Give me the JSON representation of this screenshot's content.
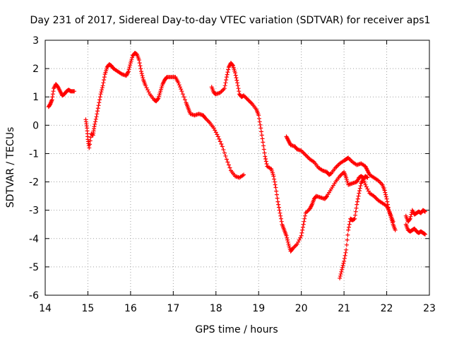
{
  "chart_data": {
    "type": "scatter",
    "title": "Day 231 of 2017, Sidereal Day-to-day VTEC variation (SDTVAR) for receiver aps1",
    "xlabel": "GPS time / hours",
    "ylabel": "SDTVAR / TECUs",
    "xlim": [
      14,
      23
    ],
    "ylim": [
      -6,
      3
    ],
    "xticks": [
      "14",
      "15",
      "16",
      "17",
      "18",
      "19",
      "20",
      "21",
      "22",
      "23"
    ],
    "yticks": [
      "-6",
      "-5",
      "-4",
      "-3",
      "-2",
      "-1",
      "0",
      "1",
      "2",
      "3"
    ],
    "grid": true,
    "marker": "+",
    "color": "#ff0000",
    "series": [
      {
        "name": "track-1",
        "points": [
          [
            14.08,
            0.65
          ],
          [
            14.12,
            0.75
          ],
          [
            14.16,
            0.9
          ],
          [
            14.2,
            1.3
          ],
          [
            14.25,
            1.45
          ],
          [
            14.3,
            1.35
          ],
          [
            14.35,
            1.2
          ],
          [
            14.4,
            1.05
          ],
          [
            14.45,
            1.1
          ],
          [
            14.5,
            1.2
          ],
          [
            14.55,
            1.25
          ],
          [
            14.6,
            1.2
          ],
          [
            14.68,
            1.2
          ]
        ]
      },
      {
        "name": "track-2",
        "points": [
          [
            14.95,
            0.2
          ],
          [
            14.98,
            -0.1
          ],
          [
            15.0,
            -0.5
          ],
          [
            15.03,
            -0.8
          ],
          [
            15.08,
            -0.3
          ],
          [
            15.12,
            -0.35
          ],
          [
            15.15,
            -0.05
          ],
          [
            15.2,
            0.3
          ],
          [
            15.25,
            0.7
          ],
          [
            15.3,
            1.1
          ],
          [
            15.35,
            1.4
          ],
          [
            15.4,
            1.8
          ],
          [
            15.45,
            2.05
          ],
          [
            15.5,
            2.15
          ],
          [
            15.55,
            2.1
          ],
          [
            15.6,
            2.0
          ],
          [
            15.7,
            1.9
          ],
          [
            15.8,
            1.8
          ],
          [
            15.9,
            1.75
          ],
          [
            15.95,
            1.9
          ],
          [
            16.0,
            2.2
          ],
          [
            16.05,
            2.45
          ],
          [
            16.1,
            2.55
          ],
          [
            16.15,
            2.5
          ],
          [
            16.2,
            2.3
          ],
          [
            16.25,
            1.9
          ],
          [
            16.3,
            1.6
          ],
          [
            16.35,
            1.4
          ],
          [
            16.45,
            1.1
          ],
          [
            16.55,
            0.9
          ],
          [
            16.6,
            0.85
          ],
          [
            16.65,
            0.95
          ],
          [
            16.7,
            1.2
          ],
          [
            16.75,
            1.45
          ],
          [
            16.8,
            1.6
          ],
          [
            16.85,
            1.7
          ],
          [
            16.95,
            1.7
          ],
          [
            17.05,
            1.7
          ],
          [
            17.12,
            1.5
          ],
          [
            17.2,
            1.2
          ],
          [
            17.3,
            0.8
          ],
          [
            17.35,
            0.6
          ],
          [
            17.4,
            0.4
          ],
          [
            17.5,
            0.35
          ],
          [
            17.6,
            0.4
          ],
          [
            17.7,
            0.35
          ],
          [
            17.75,
            0.25
          ],
          [
            17.85,
            0.1
          ],
          [
            17.95,
            -0.1
          ],
          [
            18.05,
            -0.4
          ],
          [
            18.15,
            -0.75
          ],
          [
            18.25,
            -1.2
          ],
          [
            18.35,
            -1.6
          ],
          [
            18.45,
            -1.8
          ],
          [
            18.55,
            -1.85
          ],
          [
            18.65,
            -1.75
          ]
        ]
      },
      {
        "name": "track-3",
        "points": [
          [
            17.9,
            1.35
          ],
          [
            17.95,
            1.15
          ],
          [
            18.0,
            1.1
          ],
          [
            18.1,
            1.15
          ],
          [
            18.2,
            1.3
          ],
          [
            18.25,
            1.7
          ],
          [
            18.3,
            2.05
          ],
          [
            18.35,
            2.2
          ],
          [
            18.4,
            2.1
          ],
          [
            18.45,
            1.85
          ],
          [
            18.5,
            1.5
          ],
          [
            18.55,
            1.1
          ],
          [
            18.6,
            1.0
          ],
          [
            18.65,
            1.05
          ],
          [
            18.75,
            0.9
          ],
          [
            18.85,
            0.75
          ],
          [
            18.95,
            0.55
          ],
          [
            19.0,
            0.35
          ],
          [
            19.05,
            -0.1
          ],
          [
            19.1,
            -0.6
          ],
          [
            19.15,
            -1.1
          ],
          [
            19.2,
            -1.45
          ],
          [
            19.3,
            -1.55
          ],
          [
            19.35,
            -1.8
          ],
          [
            19.4,
            -2.2
          ],
          [
            19.45,
            -2.7
          ],
          [
            19.5,
            -3.1
          ],
          [
            19.55,
            -3.5
          ],
          [
            19.6,
            -3.7
          ],
          [
            19.65,
            -3.9
          ],
          [
            19.7,
            -4.2
          ],
          [
            19.75,
            -4.45
          ],
          [
            19.8,
            -4.35
          ],
          [
            19.9,
            -4.2
          ],
          [
            20.0,
            -3.9
          ],
          [
            20.05,
            -3.5
          ],
          [
            20.1,
            -3.1
          ],
          [
            20.2,
            -2.95
          ],
          [
            20.25,
            -2.8
          ],
          [
            20.3,
            -2.6
          ],
          [
            20.35,
            -2.5
          ],
          [
            20.45,
            -2.55
          ],
          [
            20.55,
            -2.6
          ],
          [
            20.6,
            -2.5
          ],
          [
            20.7,
            -2.25
          ],
          [
            20.8,
            -2.0
          ],
          [
            20.9,
            -1.8
          ],
          [
            21.0,
            -1.65
          ],
          [
            21.05,
            -1.85
          ],
          [
            21.1,
            -2.1
          ],
          [
            21.2,
            -2.05
          ],
          [
            21.3,
            -2.0
          ],
          [
            21.35,
            -1.85
          ],
          [
            21.4,
            -1.8
          ],
          [
            21.45,
            -1.85
          ],
          [
            21.5,
            -2.1
          ],
          [
            21.6,
            -2.4
          ],
          [
            21.7,
            -2.5
          ],
          [
            21.8,
            -2.65
          ],
          [
            21.9,
            -2.75
          ],
          [
            22.0,
            -2.85
          ],
          [
            22.05,
            -3.0
          ],
          [
            22.1,
            -3.25
          ],
          [
            22.15,
            -3.5
          ],
          [
            22.2,
            -3.7
          ]
        ]
      },
      {
        "name": "track-4",
        "points": [
          [
            19.65,
            -0.4
          ],
          [
            19.7,
            -0.55
          ],
          [
            19.75,
            -0.7
          ],
          [
            19.85,
            -0.75
          ],
          [
            19.9,
            -0.85
          ],
          [
            20.0,
            -0.9
          ],
          [
            20.1,
            -1.05
          ],
          [
            20.2,
            -1.2
          ],
          [
            20.3,
            -1.3
          ],
          [
            20.4,
            -1.5
          ],
          [
            20.5,
            -1.6
          ],
          [
            20.6,
            -1.65
          ],
          [
            20.65,
            -1.75
          ],
          [
            20.7,
            -1.7
          ],
          [
            20.8,
            -1.5
          ],
          [
            20.9,
            -1.35
          ],
          [
            21.0,
            -1.25
          ],
          [
            21.05,
            -1.2
          ],
          [
            21.1,
            -1.15
          ],
          [
            21.2,
            -1.3
          ],
          [
            21.3,
            -1.4
          ],
          [
            21.4,
            -1.35
          ],
          [
            21.5,
            -1.45
          ],
          [
            21.55,
            -1.6
          ],
          [
            21.6,
            -1.75
          ],
          [
            21.7,
            -1.85
          ],
          [
            21.8,
            -1.95
          ],
          [
            21.9,
            -2.1
          ],
          [
            21.95,
            -2.3
          ],
          [
            22.0,
            -2.6
          ],
          [
            22.05,
            -3.0
          ],
          [
            22.1,
            -3.2
          ],
          [
            22.15,
            -3.4
          ]
        ]
      },
      {
        "name": "track-5",
        "points": [
          [
            20.9,
            -5.4
          ],
          [
            20.95,
            -5.1
          ],
          [
            21.0,
            -4.8
          ],
          [
            21.05,
            -4.4
          ],
          [
            21.1,
            -3.7
          ],
          [
            21.15,
            -3.3
          ],
          [
            21.2,
            -3.35
          ],
          [
            21.25,
            -3.3
          ],
          [
            21.3,
            -2.8
          ],
          [
            21.35,
            -2.4
          ],
          [
            21.4,
            -2.05
          ],
          [
            21.45,
            -1.9
          ],
          [
            21.5,
            -1.8
          ],
          [
            21.55,
            -1.85
          ]
        ]
      },
      {
        "name": "track-6",
        "points": [
          [
            22.45,
            -3.2
          ],
          [
            22.5,
            -3.4
          ],
          [
            22.55,
            -3.3
          ],
          [
            22.6,
            -3.0
          ],
          [
            22.65,
            -3.15
          ],
          [
            22.7,
            -3.1
          ],
          [
            22.75,
            -3.05
          ],
          [
            22.8,
            -3.1
          ],
          [
            22.85,
            -3.0
          ],
          [
            22.9,
            -3.05
          ]
        ]
      },
      {
        "name": "track-7",
        "points": [
          [
            22.45,
            -3.5
          ],
          [
            22.5,
            -3.7
          ],
          [
            22.55,
            -3.75
          ],
          [
            22.6,
            -3.7
          ],
          [
            22.65,
            -3.65
          ],
          [
            22.7,
            -3.75
          ],
          [
            22.75,
            -3.8
          ],
          [
            22.8,
            -3.75
          ],
          [
            22.85,
            -3.8
          ],
          [
            22.9,
            -3.85
          ]
        ]
      }
    ]
  }
}
